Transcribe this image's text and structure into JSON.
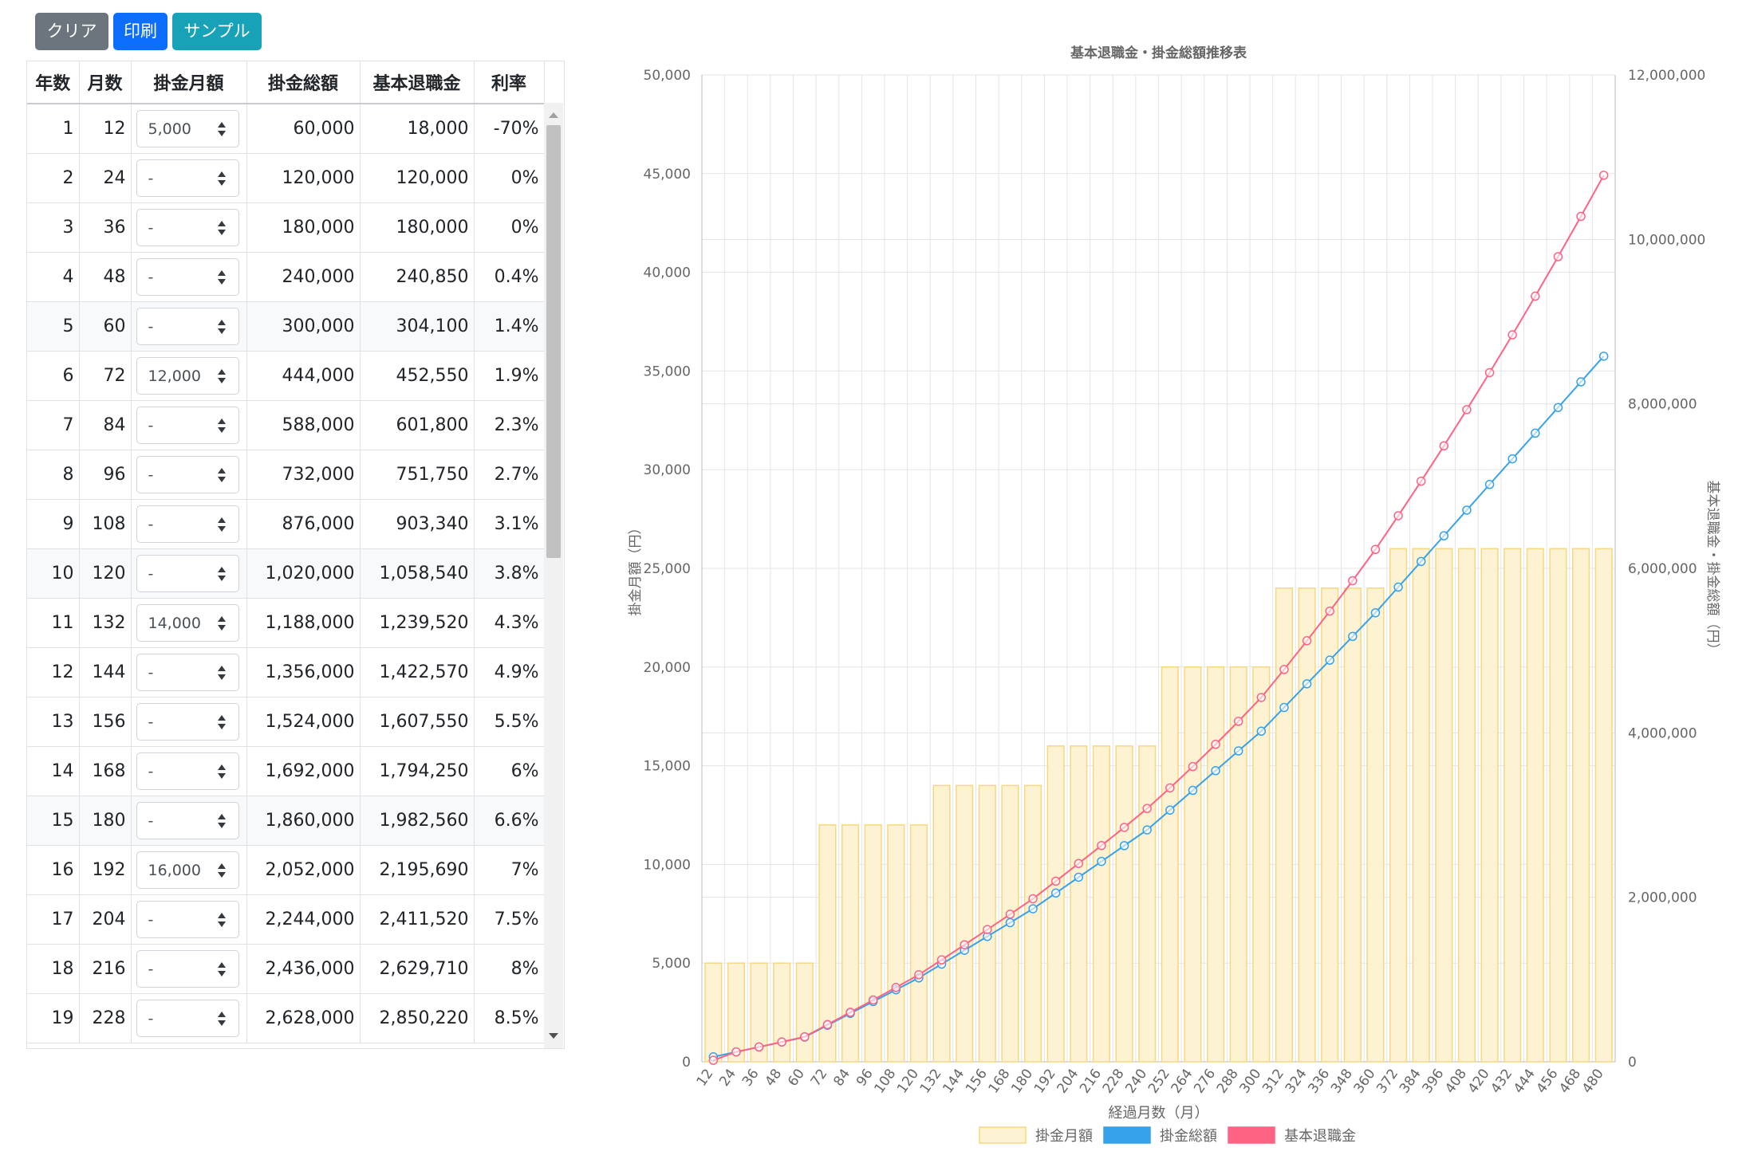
{
  "toolbar": {
    "clear_label": "クリア",
    "print_label": "印刷",
    "sample_label": "サンプル"
  },
  "table": {
    "headers": [
      "年数",
      "月数",
      "掛金月額",
      "掛金総額",
      "基本退職金",
      "利率"
    ],
    "rows": [
      {
        "year": "1",
        "month": "12",
        "monthly": "5,000",
        "total": "60,000",
        "retire": "18,000",
        "rate": "-70%"
      },
      {
        "year": "2",
        "month": "24",
        "monthly": "-",
        "total": "120,000",
        "retire": "120,000",
        "rate": "0%"
      },
      {
        "year": "3",
        "month": "36",
        "monthly": "-",
        "total": "180,000",
        "retire": "180,000",
        "rate": "0%"
      },
      {
        "year": "4",
        "month": "48",
        "monthly": "-",
        "total": "240,000",
        "retire": "240,850",
        "rate": "0.4%"
      },
      {
        "year": "5",
        "month": "60",
        "monthly": "-",
        "total": "300,000",
        "retire": "304,100",
        "rate": "1.4%"
      },
      {
        "year": "6",
        "month": "72",
        "monthly": "12,000",
        "total": "444,000",
        "retire": "452,550",
        "rate": "1.9%"
      },
      {
        "year": "7",
        "month": "84",
        "monthly": "-",
        "total": "588,000",
        "retire": "601,800",
        "rate": "2.3%"
      },
      {
        "year": "8",
        "month": "96",
        "monthly": "-",
        "total": "732,000",
        "retire": "751,750",
        "rate": "2.7%"
      },
      {
        "year": "9",
        "month": "108",
        "monthly": "-",
        "total": "876,000",
        "retire": "903,340",
        "rate": "3.1%"
      },
      {
        "year": "10",
        "month": "120",
        "monthly": "-",
        "total": "1,020,000",
        "retire": "1,058,540",
        "rate": "3.8%"
      },
      {
        "year": "11",
        "month": "132",
        "monthly": "14,000",
        "total": "1,188,000",
        "retire": "1,239,520",
        "rate": "4.3%"
      },
      {
        "year": "12",
        "month": "144",
        "monthly": "-",
        "total": "1,356,000",
        "retire": "1,422,570",
        "rate": "4.9%"
      },
      {
        "year": "13",
        "month": "156",
        "monthly": "-",
        "total": "1,524,000",
        "retire": "1,607,550",
        "rate": "5.5%"
      },
      {
        "year": "14",
        "month": "168",
        "monthly": "-",
        "total": "1,692,000",
        "retire": "1,794,250",
        "rate": "6%"
      },
      {
        "year": "15",
        "month": "180",
        "monthly": "-",
        "total": "1,860,000",
        "retire": "1,982,560",
        "rate": "6.6%"
      },
      {
        "year": "16",
        "month": "192",
        "monthly": "16,000",
        "total": "2,052,000",
        "retire": "2,195,690",
        "rate": "7%"
      },
      {
        "year": "17",
        "month": "204",
        "monthly": "-",
        "total": "2,244,000",
        "retire": "2,411,520",
        "rate": "7.5%"
      },
      {
        "year": "18",
        "month": "216",
        "monthly": "-",
        "total": "2,436,000",
        "retire": "2,629,710",
        "rate": "8%"
      },
      {
        "year": "19",
        "month": "228",
        "monthly": "-",
        "total": "2,628,000",
        "retire": "2,850,220",
        "rate": "8.5%"
      }
    ]
  },
  "colors": {
    "bar_fill": "#fdf3d3",
    "bar_stroke": "#f9d77e",
    "total_line": "#36a2eb",
    "retire_line": "#ff6384",
    "grid": "#e5e5e5",
    "text": "#666666"
  },
  "chart_data": {
    "type": "bar",
    "title": "基本退職金・掛金総額推移表",
    "xlabel": "経過月数（月）",
    "ylabel_left": "掛金月額（円）",
    "ylabel_right": "基本退職金・掛金総額（円）",
    "ylim_left": [
      0,
      50000
    ],
    "ylim_right": [
      0,
      12000000
    ],
    "yticks_left": [
      "0",
      "5,000",
      "10,000",
      "15,000",
      "20,000",
      "25,000",
      "30,000",
      "35,000",
      "40,000",
      "45,000",
      "50,000"
    ],
    "yticks_right": [
      "0",
      "2,000,000",
      "4,000,000",
      "6,000,000",
      "8,000,000",
      "10,000,000",
      "12,000,000"
    ],
    "categories": [
      "12",
      "24",
      "36",
      "48",
      "60",
      "72",
      "84",
      "96",
      "108",
      "120",
      "132",
      "144",
      "156",
      "168",
      "180",
      "192",
      "204",
      "216",
      "228",
      "240",
      "252",
      "264",
      "276",
      "288",
      "300",
      "312",
      "324",
      "336",
      "348",
      "360",
      "372",
      "384",
      "396",
      "408",
      "420",
      "432",
      "444",
      "456",
      "468",
      "480"
    ],
    "series": [
      {
        "name": "掛金月額",
        "type": "bar",
        "axis": "left",
        "values": [
          5000,
          5000,
          5000,
          5000,
          5000,
          12000,
          12000,
          12000,
          12000,
          12000,
          14000,
          14000,
          14000,
          14000,
          14000,
          16000,
          16000,
          16000,
          16000,
          16000,
          20000,
          20000,
          20000,
          20000,
          20000,
          24000,
          24000,
          24000,
          24000,
          24000,
          26000,
          26000,
          26000,
          26000,
          26000,
          26000,
          26000,
          26000,
          26000,
          26000
        ]
      },
      {
        "name": "掛金総額",
        "type": "line",
        "axis": "right",
        "values": [
          60000,
          120000,
          180000,
          240000,
          300000,
          444000,
          588000,
          732000,
          876000,
          1020000,
          1188000,
          1356000,
          1524000,
          1692000,
          1860000,
          2052000,
          2244000,
          2436000,
          2628000,
          2820000,
          3060000,
          3300000,
          3540000,
          3780000,
          4020000,
          4308000,
          4596000,
          4884000,
          5172000,
          5460000,
          5772000,
          6084000,
          6396000,
          6708000,
          7020000,
          7332000,
          7644000,
          7956000,
          8268000,
          8580000
        ]
      },
      {
        "name": "基本退職金",
        "type": "line",
        "axis": "right",
        "values": [
          18000,
          120000,
          180000,
          240850,
          304100,
          452550,
          601800,
          751750,
          903340,
          1058540,
          1239520,
          1422570,
          1607550,
          1794250,
          1982560,
          2195690,
          2411520,
          2629710,
          2850220,
          3080000,
          3330000,
          3590000,
          3860000,
          4140000,
          4430000,
          4770000,
          5120000,
          5480000,
          5850000,
          6230000,
          6640000,
          7060000,
          7490000,
          7930000,
          8380000,
          8840000,
          9310000,
          9790000,
          10280000,
          10780000
        ]
      }
    ],
    "legend_position": "bottom"
  }
}
